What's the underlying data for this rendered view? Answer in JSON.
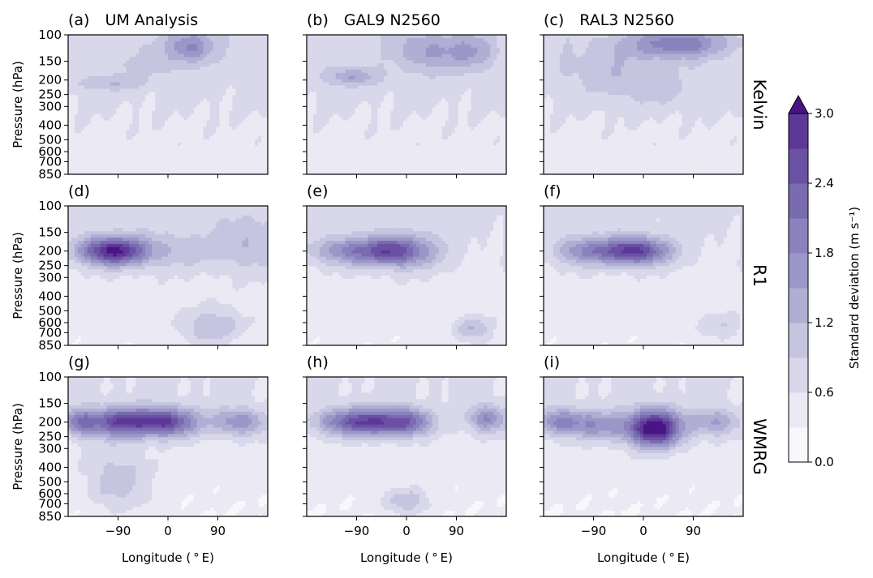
{
  "chart_data": {
    "type": "heatmap",
    "panels": [
      {
        "label": "(a)",
        "title": "UM Analysis"
      },
      {
        "label": "(b)",
        "title": "GAL9 N2560"
      },
      {
        "label": "(c)",
        "title": "RAL3 N2560"
      },
      {
        "label": "(d)",
        "title": ""
      },
      {
        "label": "(e)",
        "title": ""
      },
      {
        "label": "(f)",
        "title": ""
      },
      {
        "label": "(g)",
        "title": ""
      },
      {
        "label": "(h)",
        "title": ""
      },
      {
        "label": "(i)",
        "title": ""
      }
    ],
    "rows": [
      "Kelvin",
      "R1",
      "WMRG"
    ],
    "xlabel": "Longitude ($^\\circ$E)",
    "xlabel_display": "Longitude ( ° E)",
    "ylabel": "Pressure (hPa)",
    "x_ticks": [
      -90,
      0,
      90
    ],
    "x_tick_labels": [
      "−90",
      "0",
      "90"
    ],
    "xlim": [
      -180,
      180
    ],
    "y_ticks": [
      100,
      150,
      200,
      250,
      300,
      400,
      500,
      600,
      700,
      850
    ],
    "y_tick_labels": [
      "100",
      "150",
      "200",
      "250",
      "300",
      "400",
      "500",
      "600",
      "700",
      "850"
    ],
    "ylim": [
      100,
      850
    ],
    "colorbar": {
      "label": "Standard deviation (m s⁻¹)",
      "levels": [
        0.0,
        0.3,
        0.6,
        0.9,
        1.2,
        1.5,
        1.8,
        2.1,
        2.4,
        2.7,
        3.0
      ],
      "tick_values": [
        0.0,
        0.6,
        1.2,
        1.8,
        2.4,
        3.0
      ],
      "tick_labels": [
        "0.0",
        "0.6",
        "1.2",
        "1.8",
        "2.4",
        "3.0"
      ],
      "extend": "max",
      "colors": [
        "#f8f7fb",
        "#ebeaf4",
        "#d9d8ea",
        "#c5c5e0",
        "#b1aed4",
        "#9b97c8",
        "#8a82bd",
        "#7a6bb0",
        "#6b51a4",
        "#5d3898",
        "#4a1486"
      ]
    },
    "fields": [
      {
        "panel": "(a)",
        "base": 0.45,
        "blobs": [
          [
            -110,
            210,
            45,
            0.08,
            0.5
          ],
          [
            40,
            120,
            30,
            0.18,
            1.1
          ],
          [
            -40,
            160,
            40,
            0.15,
            0.3
          ]
        ]
      },
      {
        "panel": "(b)",
        "base": 0.45,
        "blobs": [
          [
            -100,
            190,
            35,
            0.1,
            0.8
          ],
          [
            40,
            130,
            40,
            0.22,
            0.8
          ],
          [
            120,
            130,
            30,
            0.2,
            0.7
          ]
        ]
      },
      {
        "panel": "(c)",
        "base": 0.45,
        "blobs": [
          [
            60,
            115,
            60,
            0.15,
            1.3
          ],
          [
            -60,
            170,
            70,
            0.25,
            0.4
          ],
          [
            20,
            240,
            60,
            0.2,
            0.3
          ]
        ]
      },
      {
        "panel": "(d)",
        "base": 0.35,
        "blobs": [
          [
            -125,
            200,
            35,
            0.15,
            1.3
          ],
          [
            -85,
            200,
            35,
            0.15,
            1.5
          ],
          [
            -10,
            200,
            60,
            0.2,
            0.6
          ],
          [
            80,
            640,
            40,
            0.2,
            0.8
          ],
          [
            150,
            180,
            50,
            0.3,
            0.6
          ]
        ]
      },
      {
        "panel": "(e)",
        "base": 0.35,
        "blobs": [
          [
            -115,
            200,
            40,
            0.15,
            1.1
          ],
          [
            -35,
            200,
            40,
            0.15,
            1.4
          ],
          [
            5,
            200,
            45,
            0.2,
            0.9
          ],
          [
            120,
            670,
            25,
            0.15,
            0.8
          ]
        ]
      },
      {
        "panel": "(f)",
        "base": 0.35,
        "blobs": [
          [
            -115,
            200,
            35,
            0.15,
            0.9
          ],
          [
            -40,
            200,
            45,
            0.15,
            1.3
          ],
          [
            0,
            200,
            40,
            0.15,
            1.2
          ],
          [
            140,
            640,
            30,
            0.15,
            0.5
          ]
        ]
      },
      {
        "panel": "(g)",
        "base": 0.3,
        "blobs": [
          [
            -160,
            200,
            20,
            0.15,
            1.1
          ],
          [
            -90,
            200,
            45,
            0.16,
            2.0
          ],
          [
            0,
            200,
            40,
            0.16,
            2.0
          ],
          [
            130,
            200,
            35,
            0.15,
            1.2
          ],
          [
            -90,
            500,
            40,
            0.35,
            0.7
          ]
        ]
      },
      {
        "panel": "(h)",
        "base": 0.3,
        "blobs": [
          [
            -120,
            200,
            35,
            0.15,
            1.3
          ],
          [
            -70,
            200,
            30,
            0.15,
            1.4
          ],
          [
            -5,
            200,
            35,
            0.15,
            2.0
          ],
          [
            145,
            190,
            25,
            0.15,
            1.3
          ],
          [
            0,
            680,
            30,
            0.15,
            0.8
          ]
        ]
      },
      {
        "panel": "(i)",
        "base": 0.3,
        "blobs": [
          [
            -150,
            200,
            30,
            0.15,
            1.3
          ],
          [
            -80,
            210,
            35,
            0.16,
            1.1
          ],
          [
            20,
            220,
            35,
            0.2,
            2.9
          ],
          [
            130,
            200,
            30,
            0.15,
            1.0
          ]
        ]
      }
    ]
  }
}
